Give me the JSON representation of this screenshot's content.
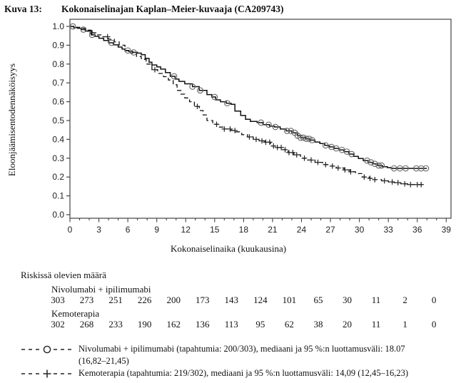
{
  "figure": {
    "label": "Kuva 13:",
    "title": "Kokonaiselinajan Kaplan–Meier-kuvaaja (CA209743)"
  },
  "chart_data": {
    "type": "line",
    "subtype": "kaplan-meier-step",
    "xlabel": "Kokonaiselinaika (kuukausina)",
    "ylabel": "Eloonjäämisentodennäköisyys",
    "xlim": [
      0,
      39
    ],
    "ylim": [
      0.0,
      1.0
    ],
    "xticks": [
      0,
      3,
      6,
      9,
      12,
      15,
      18,
      21,
      24,
      27,
      30,
      33,
      36,
      39
    ],
    "yticks": [
      1.0,
      0.9,
      0.8,
      0.7,
      0.6,
      0.5,
      0.4,
      0.3,
      0.2,
      0.1,
      0.0
    ],
    "grid": false,
    "series": [
      {
        "name": "Nivolumabi + ipilimumabi",
        "line": "solid",
        "marker": "circle",
        "points": [
          [
            0,
            1.0
          ],
          [
            0.4,
            0.993
          ],
          [
            0.8,
            0.99
          ],
          [
            1.2,
            0.983
          ],
          [
            1.6,
            0.975
          ],
          [
            2.2,
            0.955
          ],
          [
            2.6,
            0.947
          ],
          [
            3.0,
            0.937
          ],
          [
            3.5,
            0.925
          ],
          [
            4.0,
            0.913
          ],
          [
            4.5,
            0.902
          ],
          [
            5.0,
            0.89
          ],
          [
            5.4,
            0.88
          ],
          [
            5.7,
            0.872
          ],
          [
            6.1,
            0.867
          ],
          [
            6.5,
            0.862
          ],
          [
            7.0,
            0.858
          ],
          [
            7.4,
            0.85
          ],
          [
            7.8,
            0.83
          ],
          [
            8.2,
            0.81
          ],
          [
            8.5,
            0.795
          ],
          [
            9.0,
            0.785
          ],
          [
            9.4,
            0.773
          ],
          [
            9.9,
            0.755
          ],
          [
            10.4,
            0.735
          ],
          [
            10.9,
            0.72
          ],
          [
            11.3,
            0.708
          ],
          [
            11.9,
            0.695
          ],
          [
            12.7,
            0.68
          ],
          [
            13.4,
            0.66
          ],
          [
            14.2,
            0.638
          ],
          [
            14.7,
            0.625
          ],
          [
            15.1,
            0.61
          ],
          [
            15.6,
            0.6
          ],
          [
            16.2,
            0.592
          ],
          [
            16.7,
            0.586
          ],
          [
            17.1,
            0.55
          ],
          [
            17.7,
            0.527
          ],
          [
            18.2,
            0.507
          ],
          [
            18.7,
            0.495
          ],
          [
            19.4,
            0.489
          ],
          [
            20.0,
            0.478
          ],
          [
            20.7,
            0.47
          ],
          [
            21.2,
            0.466
          ],
          [
            21.8,
            0.455
          ],
          [
            22.4,
            0.445
          ],
          [
            23.0,
            0.435
          ],
          [
            23.6,
            0.42
          ],
          [
            23.9,
            0.409
          ],
          [
            24.4,
            0.403
          ],
          [
            24.9,
            0.396
          ],
          [
            25.4,
            0.386
          ],
          [
            25.9,
            0.378
          ],
          [
            26.4,
            0.368
          ],
          [
            26.9,
            0.36
          ],
          [
            27.4,
            0.352
          ],
          [
            27.9,
            0.344
          ],
          [
            28.4,
            0.335
          ],
          [
            28.9,
            0.322
          ],
          [
            29.4,
            0.31
          ],
          [
            29.9,
            0.298
          ],
          [
            30.4,
            0.287
          ],
          [
            30.9,
            0.278
          ],
          [
            31.4,
            0.27
          ],
          [
            31.9,
            0.261
          ],
          [
            32.4,
            0.255
          ],
          [
            32.9,
            0.25
          ],
          [
            33.3,
            0.246
          ],
          [
            37.0,
            0.246
          ]
        ],
        "censor_times": [
          0.3,
          1.4,
          2.3,
          4.3,
          6.0,
          6.6,
          10.8,
          12.7,
          13.5,
          15.0,
          16.3,
          19.8,
          20.6,
          21.3,
          22.5,
          22.9,
          23.3,
          23.6,
          23.9,
          24.2,
          24.5,
          24.8,
          25.1,
          26.5,
          27.1,
          27.6,
          28.2,
          28.7,
          29.2,
          30.8,
          31.2,
          31.6,
          32.0,
          32.3,
          33.6,
          34.2,
          34.8,
          35.9,
          36.4,
          36.9
        ]
      },
      {
        "name": "Kemoterapia",
        "line": "dashed",
        "marker": "plus",
        "points": [
          [
            0,
            1.0
          ],
          [
            0.5,
            0.995
          ],
          [
            1.0,
            0.99
          ],
          [
            1.6,
            0.98
          ],
          [
            2.2,
            0.966
          ],
          [
            2.8,
            0.955
          ],
          [
            3.4,
            0.945
          ],
          [
            4.0,
            0.932
          ],
          [
            4.6,
            0.918
          ],
          [
            5.1,
            0.9
          ],
          [
            5.7,
            0.871
          ],
          [
            6.3,
            0.858
          ],
          [
            6.9,
            0.84
          ],
          [
            7.4,
            0.825
          ],
          [
            7.9,
            0.8
          ],
          [
            8.5,
            0.77
          ],
          [
            9.1,
            0.75
          ],
          [
            9.7,
            0.733
          ],
          [
            10.2,
            0.715
          ],
          [
            10.7,
            0.69
          ],
          [
            11.1,
            0.66
          ],
          [
            11.5,
            0.64
          ],
          [
            11.9,
            0.62
          ],
          [
            12.4,
            0.6
          ],
          [
            12.9,
            0.575
          ],
          [
            13.4,
            0.553
          ],
          [
            13.8,
            0.53
          ],
          [
            14.2,
            0.5
          ],
          [
            14.8,
            0.48
          ],
          [
            15.4,
            0.465
          ],
          [
            16.0,
            0.455
          ],
          [
            16.7,
            0.447
          ],
          [
            17.2,
            0.44
          ],
          [
            17.8,
            0.425
          ],
          [
            18.4,
            0.413
          ],
          [
            19.0,
            0.4
          ],
          [
            19.6,
            0.392
          ],
          [
            20.2,
            0.385
          ],
          [
            20.8,
            0.365
          ],
          [
            21.4,
            0.357
          ],
          [
            22.0,
            0.345
          ],
          [
            22.6,
            0.33
          ],
          [
            23.2,
            0.318
          ],
          [
            23.9,
            0.3
          ],
          [
            24.6,
            0.29
          ],
          [
            25.4,
            0.278
          ],
          [
            26.2,
            0.266
          ],
          [
            26.9,
            0.258
          ],
          [
            27.6,
            0.248
          ],
          [
            28.4,
            0.238
          ],
          [
            29.0,
            0.228
          ],
          [
            29.6,
            0.218
          ],
          [
            30.3,
            0.2
          ],
          [
            31.0,
            0.193
          ],
          [
            31.6,
            0.186
          ],
          [
            32.3,
            0.18
          ],
          [
            33.0,
            0.174
          ],
          [
            33.6,
            0.17
          ],
          [
            34.3,
            0.164
          ],
          [
            35.0,
            0.16
          ],
          [
            36.6,
            0.158
          ]
        ],
        "censor_times": [
          2.3,
          3.9,
          8.8,
          13.2,
          15.2,
          16.0,
          16.6,
          17.1,
          18.6,
          19.3,
          19.9,
          20.3,
          20.7,
          21.1,
          21.5,
          21.9,
          22.3,
          22.7,
          23.1,
          23.5,
          24.3,
          25.0,
          25.7,
          26.5,
          27.2,
          27.8,
          28.5,
          29.1,
          30.5,
          31.1,
          31.6,
          32.6,
          33.4,
          34.0,
          34.7,
          35.3,
          36.0,
          36.4
        ]
      }
    ]
  },
  "risk_table": {
    "heading": "Riskissä olevien määrä",
    "groups": [
      {
        "label": "Nivolumabi + ipilimumabi",
        "counts": [
          "303",
          "273",
          "251",
          "226",
          "200",
          "173",
          "143",
          "124",
          "101",
          "65",
          "30",
          "11",
          "2",
          "0"
        ]
      },
      {
        "label": "Kemoterapia",
        "counts": [
          "302",
          "268",
          "233",
          "190",
          "162",
          "136",
          "113",
          "95",
          "62",
          "38",
          "20",
          "11",
          "1",
          "0"
        ]
      }
    ]
  },
  "legend": {
    "items": [
      {
        "marker": "circle",
        "lines": [
          "Nivolumabi + ipilimumabi (tapahtumia: 200/303), mediaani ja 95 %:n luottamusväli: 18.07",
          "(16,82–21,45)"
        ]
      },
      {
        "marker": "plus",
        "lines": [
          "Kemoterapia (tapahtumia: 219/302), mediaani ja 95 %:n luottamusväli: 14,09 (12,45–16,23)"
        ]
      }
    ]
  },
  "colors": {
    "curve": "#111111",
    "censor_circle": "#666666",
    "censor_plus": "#222222",
    "axis": "#444444",
    "text": "#111111"
  }
}
